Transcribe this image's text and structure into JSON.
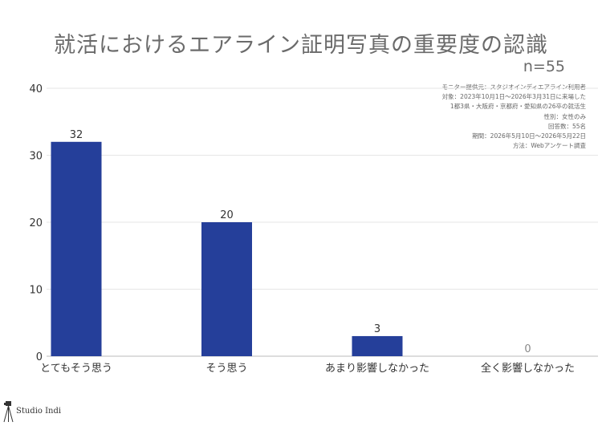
{
  "chart_data": {
    "type": "bar",
    "title": "就活におけるエアライン証明写真の重要度の認識",
    "subtitle": "n=55",
    "categories": [
      "とてもそう思う",
      "そう思う",
      "あまり影響しなかった",
      "全く影響しなかった"
    ],
    "values": [
      32,
      20,
      3,
      0
    ],
    "ylim": [
      0,
      40
    ],
    "yticks": [
      0,
      10,
      20,
      30,
      40
    ],
    "grid": true,
    "bar_color": "#253f9a",
    "notes": [
      "モニター提供元：スタジオインディエアライン利用者",
      "対象：2023年10月1日〜2026年3月31日に来場した",
      "1都3県・大阪府・京都府・愛知県の26卒の就活生",
      "性別：女性のみ",
      "回答数：55名",
      "期間：2026年5月10日〜2026年5月22日",
      "方法：Webアンケート調査"
    ]
  },
  "brand": {
    "name": "Studio Indi",
    "logo_icon": "camera-tripod-icon"
  }
}
